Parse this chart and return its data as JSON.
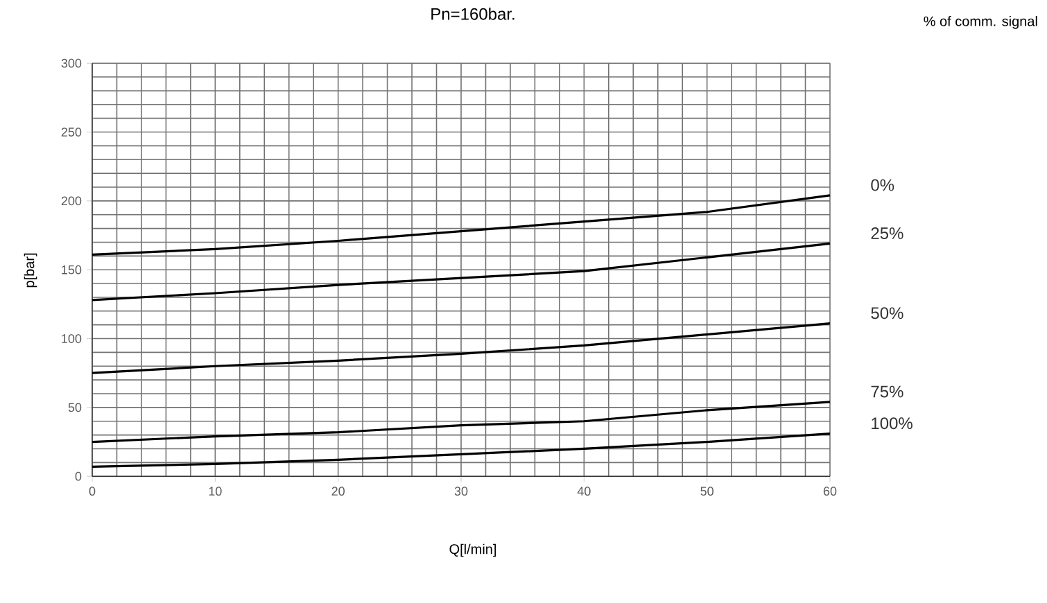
{
  "chart_data": {
    "type": "line",
    "title": "Pn=160bar.",
    "xlabel": "Q[l/min]",
    "ylabel": "p[bar]",
    "legend_title": "% of comm. signal",
    "x": [
      0,
      10,
      20,
      30,
      40,
      50,
      60
    ],
    "series": [
      {
        "name": "0%",
        "color": "#000000",
        "values": [
          161,
          165,
          171,
          178,
          185,
          192,
          204
        ]
      },
      {
        "name": "25%",
        "color": "#000000",
        "values": [
          128,
          133,
          139,
          144,
          149,
          159,
          169
        ]
      },
      {
        "name": "50%",
        "color": "#000000",
        "values": [
          75,
          80,
          84,
          89,
          95,
          103,
          111
        ]
      },
      {
        "name": "75%",
        "color": "#000000",
        "values": [
          25,
          29,
          32,
          37,
          40,
          48,
          54
        ]
      },
      {
        "name": "100%",
        "color": "#000000",
        "values": [
          7,
          9,
          12,
          16,
          20,
          25,
          31
        ]
      }
    ],
    "xlim": [
      0,
      60
    ],
    "ylim": [
      0,
      300
    ],
    "xticks": [
      0,
      10,
      20,
      30,
      40,
      50,
      60
    ],
    "yticks": [
      0,
      50,
      100,
      150,
      200,
      250,
      300
    ],
    "grid": true
  }
}
